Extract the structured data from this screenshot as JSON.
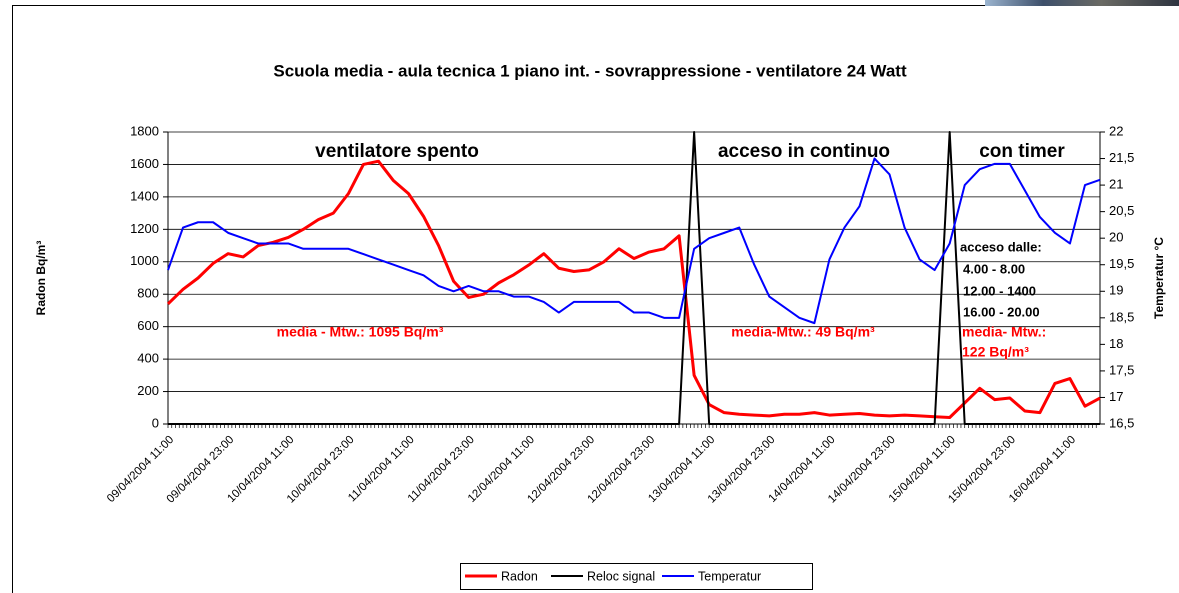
{
  "chart_data": {
    "type": "line",
    "title": "Scuola media - aula tecnica 1 piano int. - sovrappressione - ventilatore 24 Watt",
    "ylabel": "Radon Bq/m³",
    "y2label": "Temperatur °C",
    "categories": [
      "09/04/2004 11:00",
      null,
      null,
      null,
      "09/04/2004 23:00",
      null,
      null,
      null,
      "10/04/2004 11:00",
      null,
      null,
      null,
      "10/04/2004 23:00",
      null,
      null,
      null,
      "11/04/2004 11:00",
      null,
      null,
      null,
      "11/04/2004 23:00",
      null,
      null,
      null,
      "12/04/2004 11:00",
      null,
      null,
      null,
      "12/04/2004 23:00",
      null,
      null,
      null,
      "12/04/2004 23:00",
      null,
      null,
      null,
      "13/04/2004 11:00",
      null,
      null,
      null,
      "13/04/2004 23:00",
      null,
      null,
      null,
      "14/04/2004 11:00",
      null,
      null,
      null,
      "14/04/2004 23:00",
      null,
      null,
      null,
      "15/04/2004 11:00",
      null,
      null,
      null,
      "15/04/2004 23:00",
      null,
      null,
      null,
      "16/04/2004 11:00",
      null,
      null
    ],
    "series": [
      {
        "name": "Radon",
        "color": "#ff0000",
        "values": [
          740,
          830,
          900,
          990,
          1050,
          1030,
          1100,
          1120,
          1150,
          1200,
          1260,
          1300,
          1420,
          1600,
          1620,
          1500,
          1420,
          1280,
          1100,
          880,
          780,
          800,
          870,
          920,
          980,
          1050,
          960,
          940,
          950,
          1000,
          1080,
          1020,
          1060,
          1080,
          1160,
          300,
          120,
          70,
          60,
          55,
          50,
          60,
          60,
          70,
          55,
          60,
          65,
          55,
          50,
          55,
          50,
          45,
          40,
          130,
          220,
          150,
          160,
          80,
          70,
          250,
          280,
          110,
          160
        ]
      },
      {
        "name": "Reloc signal",
        "color": "#000000",
        "values": [
          0,
          0,
          0,
          0,
          0,
          0,
          0,
          0,
          0,
          0,
          0,
          0,
          0,
          0,
          0,
          0,
          0,
          0,
          0,
          0,
          0,
          0,
          0,
          0,
          0,
          0,
          0,
          0,
          0,
          0,
          0,
          0,
          0,
          0,
          0,
          1800,
          0,
          0,
          0,
          0,
          0,
          0,
          0,
          0,
          0,
          0,
          0,
          0,
          0,
          0,
          0,
          0,
          1800,
          0,
          0,
          0,
          0,
          0,
          0,
          0,
          0,
          0,
          0
        ]
      },
      {
        "name": "Temperatur",
        "color": "#0000ff",
        "axis": "y2",
        "values": [
          19.4,
          20.2,
          20.3,
          20.3,
          20.1,
          20.0,
          19.9,
          19.9,
          19.9,
          19.8,
          19.8,
          19.8,
          19.8,
          19.7,
          19.6,
          19.5,
          19.4,
          19.3,
          19.1,
          19.0,
          19.1,
          19.0,
          19.0,
          18.9,
          18.9,
          18.8,
          18.6,
          18.8,
          18.8,
          18.8,
          18.8,
          18.6,
          18.6,
          18.5,
          18.5,
          19.8,
          20.0,
          20.1,
          20.2,
          19.5,
          18.9,
          18.7,
          18.5,
          18.4,
          19.6,
          20.2,
          20.6,
          21.5,
          21.2,
          20.2,
          19.6,
          19.4,
          19.9,
          21.0,
          21.3,
          21.4,
          21.4,
          20.9,
          20.4,
          20.1,
          19.9,
          21.0,
          21.1
        ]
      }
    ],
    "ylim": [
      0,
      1800
    ],
    "yticks": [
      0,
      200,
      400,
      600,
      800,
      1000,
      1200,
      1400,
      1600,
      1800
    ],
    "y2lim": [
      16.5,
      22
    ],
    "y2ticks": [
      {
        "value": 16.5,
        "label": "16,5"
      },
      17,
      {
        "value": 17.5,
        "label": "17,5"
      },
      18,
      {
        "value": 18.5,
        "label": "18,5"
      },
      19,
      {
        "value": 19.5,
        "label": "19,5"
      },
      20,
      {
        "value": 20.5,
        "label": "20,5"
      },
      21,
      {
        "value": 21.5,
        "label": "21,5"
      },
      22
    ],
    "grid": true,
    "legend": "bottom",
    "annotations": [
      "ventilatore spento",
      "acceso in continuo",
      "con timer",
      "media - Mtw.: 1095 Bq/m³",
      "media-Mtw.: 49 Bq/m³",
      "media- Mtw.:",
      "122 Bq/m³",
      "acceso dalle:",
      "4.00 - 8.00",
      "12.00 - 1400",
      "16.00 - 20.00"
    ]
  }
}
